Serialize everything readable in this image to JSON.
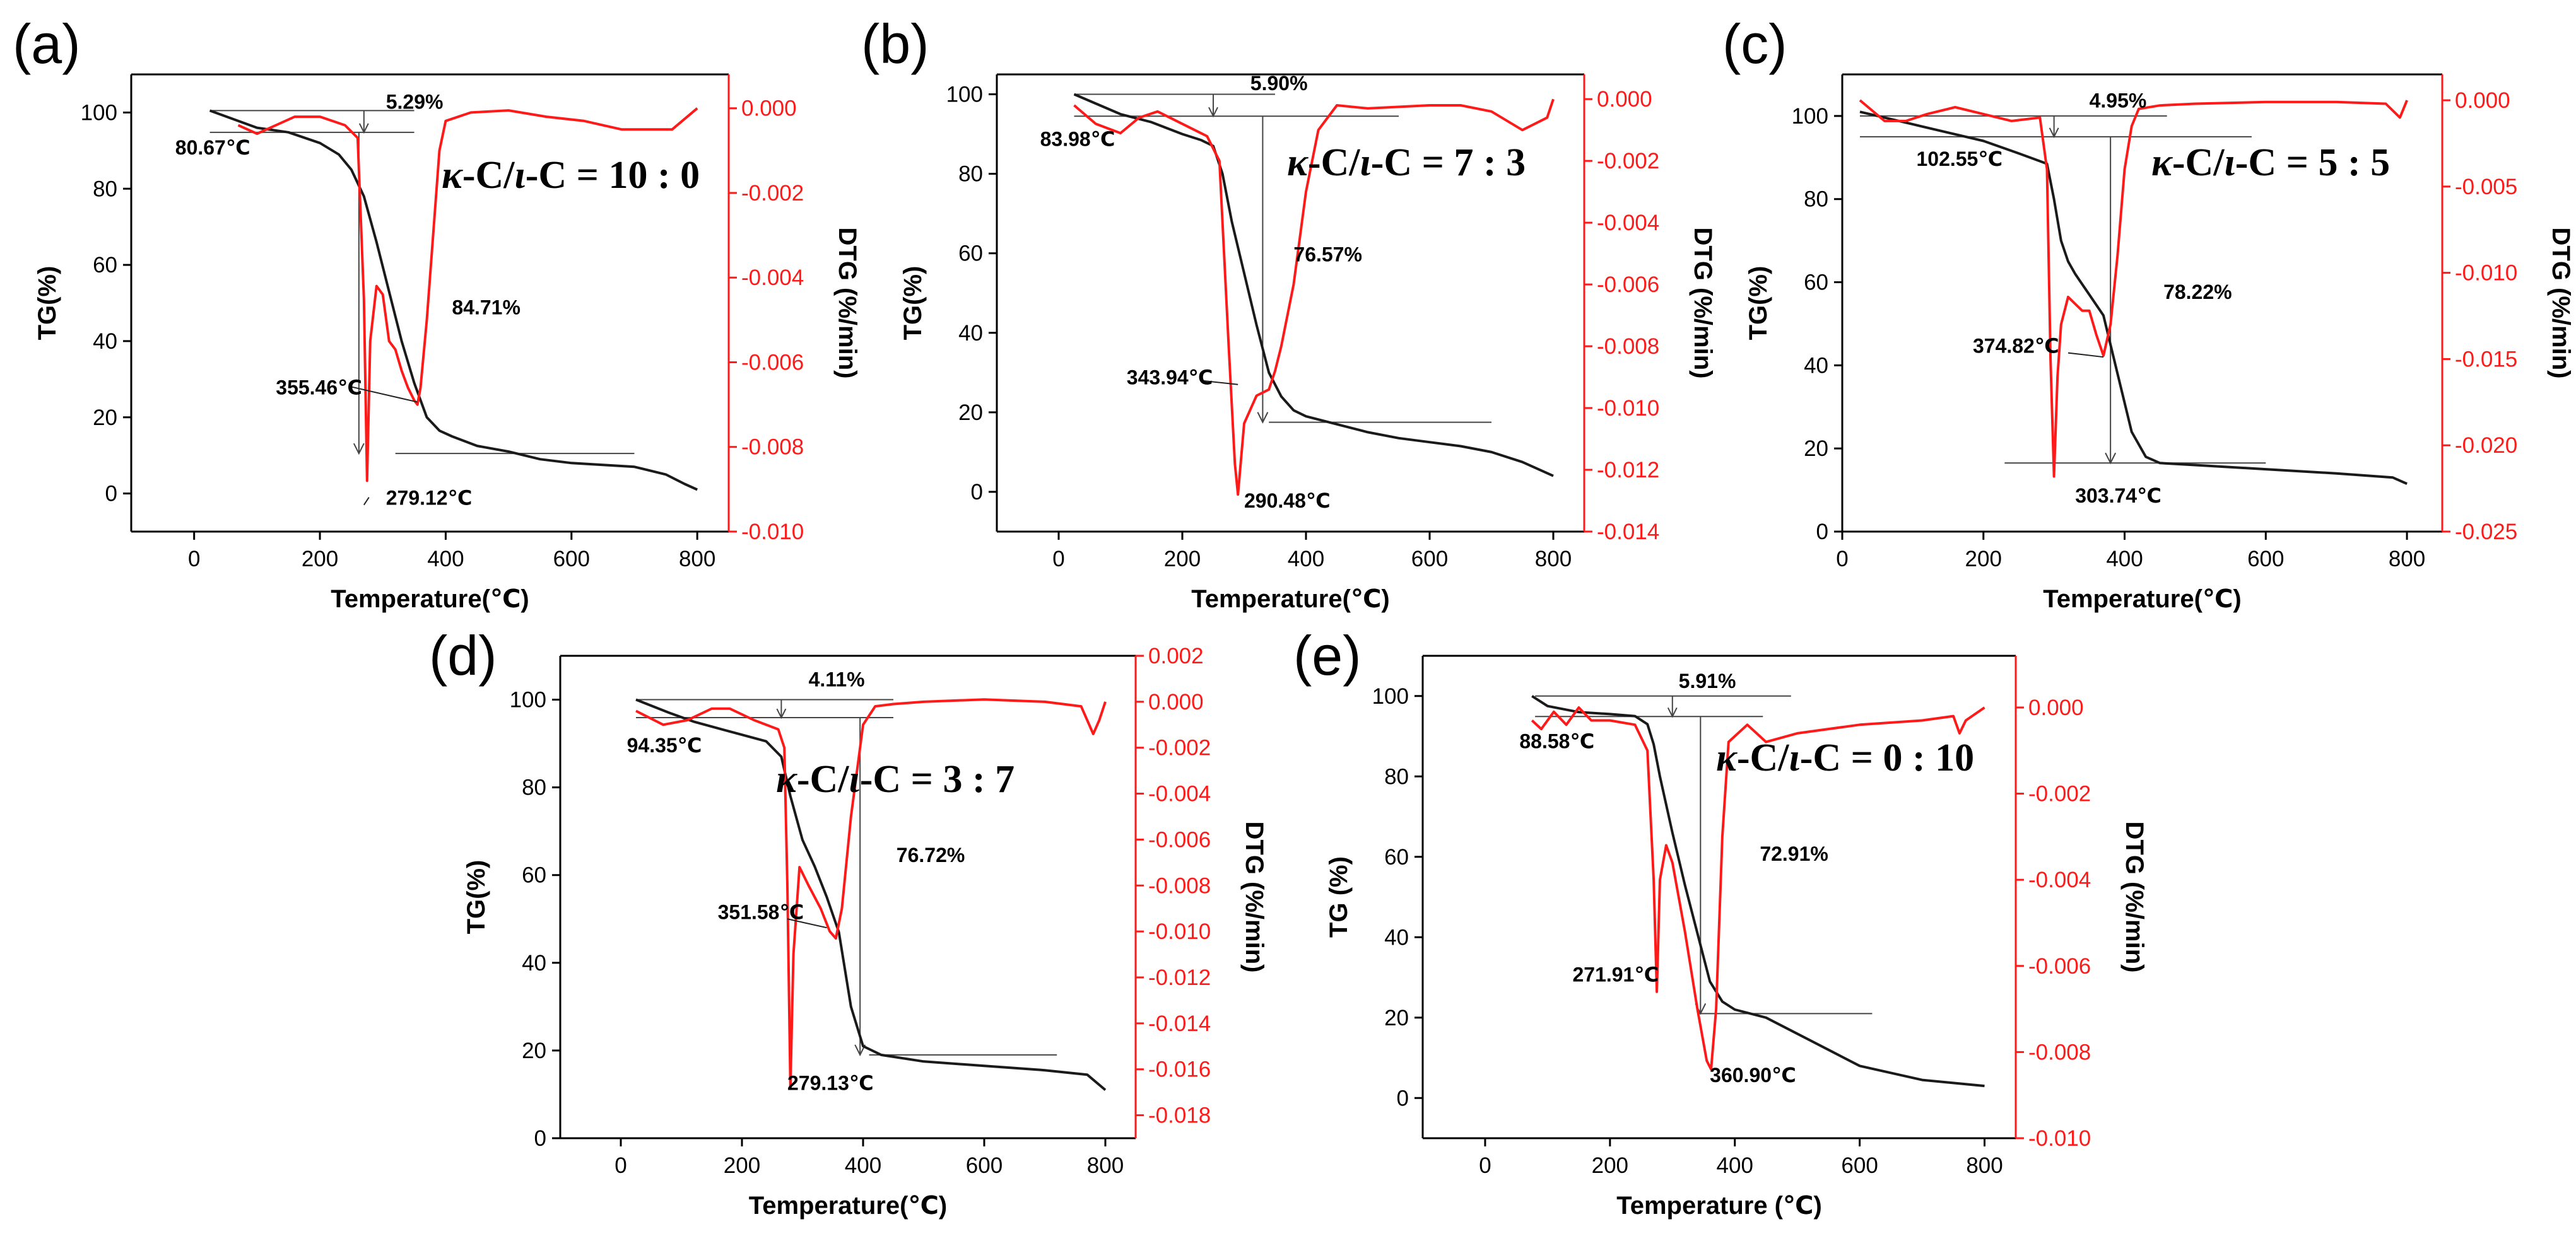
{
  "chart_data": [
    {
      "type": "line",
      "panel": "(a)",
      "ratio": {
        "k": "κ",
        "i": "ι",
        "pre": "-C/",
        "post": "-C = 10 : 0"
      },
      "xlabel": "Temperature(℃)",
      "ylabel": "TG(%)",
      "y2label": "DTG (%/min)",
      "xlim": [
        -100,
        850
      ],
      "ylim": [
        -10,
        110
      ],
      "y2lim": [
        -0.01,
        0.0008
      ],
      "xticks": [
        0,
        200,
        400,
        600,
        800
      ],
      "yticks": [
        0,
        20,
        40,
        60,
        80,
        100
      ],
      "y2ticks": [
        -0.01,
        -0.008,
        -0.006,
        -0.004,
        -0.002,
        0.0
      ],
      "y2tick_labels": [
        "-0.010",
        "-0.008",
        "-0.006",
        "-0.004",
        "-0.002",
        "0.000"
      ],
      "series": [
        {
          "name": "TG",
          "axis": "left",
          "color": "#1a1a1a",
          "x": [
            25,
            100,
            150,
            200,
            230,
            250,
            270,
            290,
            310,
            330,
            350,
            370,
            390,
            410,
            450,
            500,
            550,
            600,
            650,
            700,
            750,
            780,
            800
          ],
          "y": [
            100.5,
            96,
            94.8,
            92,
            89,
            85,
            78,
            66,
            53,
            40,
            29,
            20,
            16.5,
            15,
            12.5,
            11,
            9,
            8,
            7.5,
            7,
            5,
            2.5,
            1
          ]
        },
        {
          "name": "DTG",
          "axis": "right",
          "color": "#ff1a1a",
          "x": [
            70,
            100,
            130,
            160,
            200,
            240,
            260,
            270,
            275,
            280,
            290,
            300,
            310,
            320,
            330,
            340,
            350,
            355,
            360,
            370,
            380,
            390,
            400,
            440,
            500,
            560,
            620,
            680,
            720,
            760,
            800
          ],
          "y": [
            -0.0004,
            -0.0006,
            -0.0004,
            -0.0002,
            -0.0002,
            -0.0004,
            -0.0007,
            -0.0045,
            -0.0088,
            -0.0055,
            -0.0042,
            -0.0044,
            -0.0055,
            -0.0057,
            -0.0062,
            -0.0066,
            -0.0069,
            -0.007,
            -0.0066,
            -0.005,
            -0.003,
            -0.001,
            -0.0003,
            -0.0001,
            -5e-05,
            -0.0002,
            -0.0003,
            -0.0005,
            -0.0005,
            -0.0005,
            0.0
          ]
        }
      ],
      "annotations": [
        {
          "text": "5.29%",
          "x": 305,
          "y": 101
        },
        {
          "text": "80.67℃",
          "x": -30,
          "y": 89
        },
        {
          "text": "84.71%",
          "x": 410,
          "y": 47
        },
        {
          "text": "355.46℃",
          "x": 130,
          "y": 26
        },
        {
          "text": "279.12℃",
          "x": 305,
          "y": -3
        }
      ]
    },
    {
      "type": "line",
      "panel": "(b)",
      "ratio": {
        "k": "κ",
        "i": "ι",
        "pre": "-C/",
        "post": "-C = 7 : 3"
      },
      "xlabel": "Temperature(℃)",
      "ylabel": "TG(%)",
      "y2label": "DTG (%/min)",
      "xlim": [
        -100,
        850
      ],
      "ylim": [
        -10,
        105
      ],
      "y2lim": [
        -0.014,
        0.0008
      ],
      "xticks": [
        0,
        200,
        400,
        600,
        800
      ],
      "yticks": [
        0,
        20,
        40,
        60,
        80,
        100
      ],
      "y2ticks": [
        -0.014,
        -0.012,
        -0.01,
        -0.008,
        -0.006,
        -0.004,
        -0.002,
        0.0
      ],
      "y2tick_labels": [
        "-0.014",
        "-0.012",
        "-0.010",
        "-0.008",
        "-0.006",
        "-0.004",
        "-0.002",
        "0.000"
      ],
      "series": [
        {
          "name": "TG",
          "axis": "left",
          "color": "#1a1a1a",
          "x": [
            25,
            100,
            150,
            200,
            230,
            250,
            265,
            280,
            300,
            320,
            340,
            360,
            380,
            400,
            450,
            500,
            550,
            600,
            650,
            700,
            750,
            800
          ],
          "y": [
            100,
            95,
            93,
            90,
            88.5,
            87,
            80,
            68,
            55,
            42,
            30,
            24,
            20.5,
            19,
            17,
            15,
            13.5,
            12.5,
            11.5,
            10,
            7.5,
            4
          ]
        },
        {
          "name": "DTG",
          "axis": "right",
          "color": "#ff1a1a",
          "x": [
            25,
            60,
            100,
            130,
            160,
            200,
            240,
            260,
            275,
            285,
            290,
            300,
            320,
            340,
            350,
            360,
            380,
            400,
            420,
            450,
            500,
            600,
            650,
            700,
            750,
            790,
            800
          ],
          "y": [
            -0.0002,
            -0.0008,
            -0.0011,
            -0.0006,
            -0.0004,
            -0.0008,
            -0.0012,
            -0.002,
            -0.008,
            -0.0118,
            -0.0128,
            -0.0105,
            -0.0096,
            -0.0094,
            -0.0088,
            -0.008,
            -0.006,
            -0.003,
            -0.001,
            -0.0002,
            -0.0003,
            -0.0002,
            -0.0002,
            -0.0004,
            -0.001,
            -0.0006,
            0.0
          ]
        }
      ],
      "annotations": [
        {
          "text": "5.90%",
          "x": 310,
          "y": 101
        },
        {
          "text": "83.98℃",
          "x": -30,
          "y": 87
        },
        {
          "text": "76.57%",
          "x": 380,
          "y": 58
        },
        {
          "text": "343.94℃",
          "x": 110,
          "y": 27
        },
        {
          "text": "290.48℃",
          "x": 300,
          "y": -4
        }
      ]
    },
    {
      "type": "line",
      "panel": "(c)",
      "ratio": {
        "k": "κ",
        "i": "ι",
        "pre": "-C/",
        "post": "-C = 5 : 5"
      },
      "xlabel": "Temperature(℃)",
      "ylabel": "TG(%)",
      "y2label": "DTG (%/min)",
      "xlim": [
        0,
        850
      ],
      "ylim": [
        0,
        110
      ],
      "y2lim": [
        -0.025,
        0.0015
      ],
      "xticks": [
        0,
        200,
        400,
        600,
        800
      ],
      "yticks": [
        0,
        20,
        40,
        60,
        80,
        100
      ],
      "y2ticks": [
        -0.025,
        -0.02,
        -0.015,
        -0.01,
        -0.005,
        0.0
      ],
      "y2tick_labels": [
        "-0.025",
        "-0.020",
        "-0.015",
        "-0.010",
        "-0.005",
        "0.000"
      ],
      "series": [
        {
          "name": "TG",
          "axis": "left",
          "color": "#1a1a1a",
          "x": [
            25,
            100,
            150,
            200,
            250,
            290,
            300,
            310,
            320,
            330,
            350,
            370,
            390,
            410,
            430,
            450,
            500,
            600,
            700,
            780,
            800
          ],
          "y": [
            101,
            98,
            96,
            94,
            91,
            88.5,
            80,
            70,
            65,
            62,
            57,
            52,
            38,
            24,
            18,
            16.5,
            16,
            15,
            14,
            13,
            11.5
          ]
        },
        {
          "name": "DTG",
          "axis": "right",
          "color": "#ff1a1a",
          "x": [
            25,
            60,
            90,
            120,
            160,
            200,
            240,
            280,
            290,
            295,
            300,
            305,
            310,
            320,
            330,
            340,
            350,
            360,
            370,
            380,
            390,
            400,
            410,
            420,
            450,
            500,
            600,
            700,
            770,
            790,
            800
          ],
          "y": [
            0.0,
            -0.0012,
            -0.0012,
            -0.0008,
            -0.0004,
            -0.0008,
            -0.0012,
            -0.001,
            -0.004,
            -0.015,
            -0.0218,
            -0.016,
            -0.013,
            -0.0114,
            -0.0118,
            -0.0122,
            -0.0122,
            -0.0136,
            -0.0148,
            -0.013,
            -0.009,
            -0.004,
            -0.0015,
            -0.0005,
            -0.0003,
            -0.0002,
            -0.0001,
            -0.0001,
            -0.0002,
            -0.001,
            0.0
          ]
        }
      ],
      "annotations": [
        {
          "text": "4.95%",
          "x": 350,
          "y": 102
        },
        {
          "text": "102.55℃",
          "x": 105,
          "y": 88
        },
        {
          "text": "78.22%",
          "x": 455,
          "y": 56
        },
        {
          "text": "374.82℃",
          "x": 185,
          "y": 43
        },
        {
          "text": "303.74℃",
          "x": 330,
          "y": 7
        }
      ]
    },
    {
      "type": "line",
      "panel": "(d)",
      "ratio": {
        "k": "κ",
        "i": "ι",
        "pre": "-C/",
        "post": "-C = 3 : 7"
      },
      "xlabel": "Temperature(℃)",
      "ylabel": "TG(%)",
      "y2label": "DTG (%/min)",
      "xlim": [
        -100,
        850
      ],
      "ylim": [
        0,
        110
      ],
      "y2lim": [
        -0.019,
        0.002
      ],
      "xticks": [
        0,
        200,
        400,
        600,
        800
      ],
      "yticks": [
        0,
        20,
        40,
        60,
        80,
        100
      ],
      "y2ticks": [
        -0.018,
        -0.016,
        -0.014,
        -0.012,
        -0.01,
        -0.008,
        -0.006,
        -0.004,
        -0.002,
        0.0,
        0.002
      ],
      "y2tick_labels": [
        "-0.018",
        "-0.016",
        "-0.014",
        "-0.012",
        "-0.010",
        "-0.008",
        "-0.006",
        "-0.004",
        "-0.002",
        "0.000",
        "0.002"
      ],
      "series": [
        {
          "name": "TG",
          "axis": "left",
          "color": "#1a1a1a",
          "x": [
            25,
            80,
            120,
            160,
            200,
            240,
            265,
            280,
            300,
            320,
            340,
            360,
            380,
            400,
            430,
            500,
            600,
            700,
            770,
            800
          ],
          "y": [
            100,
            97,
            95,
            93.5,
            92,
            90.5,
            87,
            78,
            68,
            62,
            55,
            47,
            30,
            21,
            19,
            17.5,
            16.5,
            15.5,
            14.5,
            11
          ]
        },
        {
          "name": "DTG",
          "axis": "right",
          "color": "#ff1a1a",
          "x": [
            25,
            70,
            110,
            150,
            180,
            220,
            260,
            270,
            275,
            280,
            285,
            295,
            310,
            330,
            345,
            355,
            365,
            380,
            400,
            420,
            450,
            500,
            600,
            700,
            760,
            780,
            790,
            800
          ],
          "y": [
            -0.0004,
            -0.001,
            -0.0008,
            -0.0003,
            -0.0003,
            -0.0008,
            -0.0012,
            -0.002,
            -0.008,
            -0.0168,
            -0.011,
            -0.0072,
            -0.008,
            -0.009,
            -0.01,
            -0.0103,
            -0.009,
            -0.005,
            -0.001,
            -0.0002,
            -0.0001,
            0.0,
            0.0001,
            0.0,
            -0.0002,
            -0.0014,
            -0.0008,
            0.0
          ]
        }
      ],
      "annotations": [
        {
          "text": "4.11%",
          "x": 310,
          "y": 103
        },
        {
          "text": "94.35℃",
          "x": 10,
          "y": 88
        },
        {
          "text": "76.72%",
          "x": 455,
          "y": 63
        },
        {
          "text": "351.58℃",
          "x": 160,
          "y": 50
        },
        {
          "text": "279.13℃",
          "x": 275,
          "y": 11
        }
      ]
    },
    {
      "type": "line",
      "panel": "(e)",
      "ratio": {
        "k": "κ",
        "i": "ι",
        "pre": "-C/",
        "post": "-C = 0 : 10"
      },
      "xlabel": "Temperature (℃)",
      "ylabel": "TG (%)",
      "y2label": "DTG (%/min)",
      "xlim": [
        -100,
        850
      ],
      "ylim": [
        -10,
        110
      ],
      "y2lim": [
        -0.01,
        0.0012
      ],
      "xticks": [
        0,
        200,
        400,
        600,
        800
      ],
      "yticks": [
        0,
        20,
        40,
        60,
        80,
        100
      ],
      "y2ticks": [
        -0.01,
        -0.008,
        -0.006,
        -0.004,
        -0.002,
        0.0
      ],
      "y2tick_labels": [
        "-0.010",
        "-0.008",
        "-0.006",
        "-0.004",
        "-0.002",
        "0.000"
      ],
      "series": [
        {
          "name": "TG",
          "axis": "left",
          "color": "#1a1a1a",
          "x": [
            75,
            100,
            150,
            200,
            240,
            260,
            270,
            280,
            300,
            320,
            340,
            360,
            380,
            400,
            450,
            500,
            550,
            600,
            700,
            800
          ],
          "y": [
            100,
            97.5,
            96,
            95.5,
            95,
            93,
            88,
            80,
            66,
            53,
            41,
            29,
            24,
            22,
            20,
            16,
            12,
            8,
            4.5,
            3
          ]
        },
        {
          "name": "DTG",
          "axis": "right",
          "color": "#ff1a1a",
          "x": [
            75,
            90,
            110,
            130,
            150,
            170,
            200,
            240,
            260,
            270,
            275,
            280,
            290,
            300,
            320,
            340,
            355,
            362,
            370,
            380,
            390,
            420,
            450,
            500,
            600,
            700,
            750,
            760,
            770,
            800
          ],
          "y": [
            -0.0003,
            -0.0005,
            -0.0001,
            -0.0004,
            0.0,
            -0.0003,
            -0.0003,
            -0.0004,
            -0.001,
            -0.004,
            -0.0066,
            -0.004,
            -0.0032,
            -0.0036,
            -0.0052,
            -0.007,
            -0.0082,
            -0.0084,
            -0.007,
            -0.003,
            -0.0008,
            -0.0004,
            -0.0008,
            -0.0006,
            -0.0004,
            -0.0003,
            -0.0002,
            -0.0006,
            -0.0003,
            0.0
          ]
        }
      ],
      "annotations": [
        {
          "text": "5.91%",
          "x": 310,
          "y": 102
        },
        {
          "text": "88.58℃",
          "x": 55,
          "y": 87
        },
        {
          "text": "72.91%",
          "x": 440,
          "y": 59
        },
        {
          "text": "271.91℃",
          "x": 140,
          "y": 29
        },
        {
          "text": "360.90℃",
          "x": 360,
          "y": 4
        }
      ]
    }
  ]
}
